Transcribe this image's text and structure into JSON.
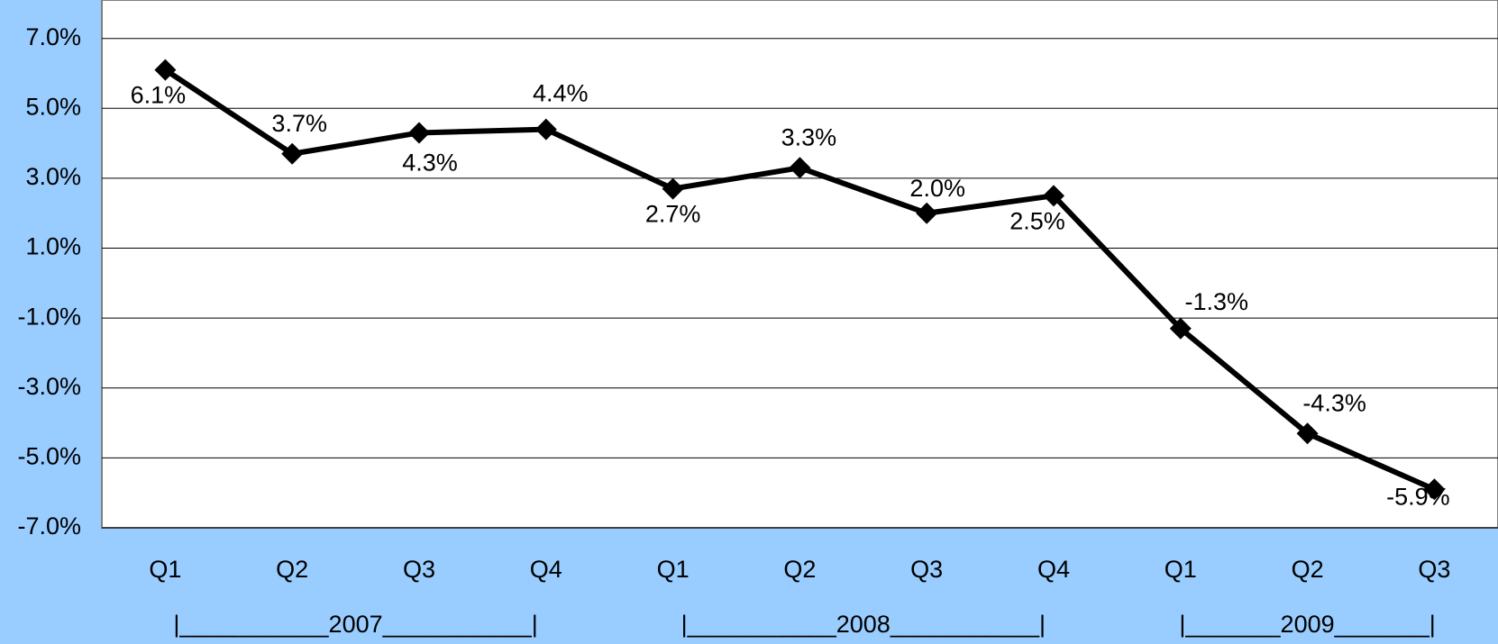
{
  "chart_data": {
    "type": "line",
    "categories": [
      "Q1",
      "Q2",
      "Q3",
      "Q4",
      "Q1",
      "Q2",
      "Q3",
      "Q4",
      "Q1",
      "Q2",
      "Q3"
    ],
    "group_labels": [
      "|___________2007___________|",
      "|___________2008___________|",
      "|_______2009_______|"
    ],
    "series": [
      {
        "color": "#000000",
        "values": [
          6.1,
          3.7,
          4.3,
          4.4,
          2.7,
          3.3,
          2.0,
          2.5,
          -1.3,
          -4.3,
          -5.9
        ],
        "value_labels": [
          "6.1%",
          "3.7%",
          "4.3%",
          "4.4%",
          "2.7%",
          "3.3%",
          "2.0%",
          "2.5%",
          "-1.3%",
          "-4.3%",
          "-5.9%"
        ]
      }
    ],
    "ylim": [
      -7,
      8.1
    ],
    "yticks": [
      {
        "value": -7,
        "label": "-7.0%"
      },
      {
        "value": -5,
        "label": "-5.0%"
      },
      {
        "value": -3,
        "label": "-3.0%"
      },
      {
        "value": -1,
        "label": "-1.0%"
      },
      {
        "value": 1,
        "label": "1.0%"
      },
      {
        "value": 3,
        "label": "3.0%"
      },
      {
        "value": 5,
        "label": "5.0%"
      },
      {
        "value": 7,
        "label": "7.0%"
      }
    ],
    "grid": true
  }
}
